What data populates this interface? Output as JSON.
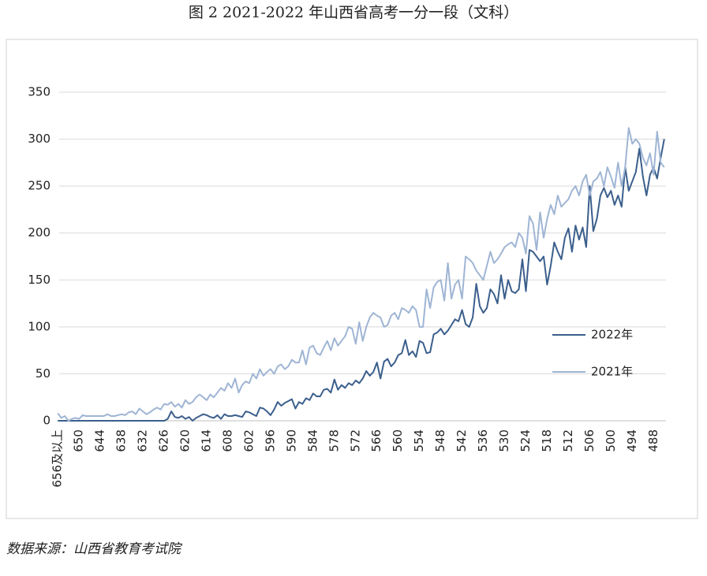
{
  "chart_data": {
    "type": "line",
    "title": "图 2 2021-2022 年山西省高考一分一段（文科）",
    "source": "数据来源：山西省教育考试院",
    "categories": [
      "656及以上",
      null,
      null,
      null,
      null,
      null,
      "650",
      null,
      null,
      null,
      null,
      null,
      "644",
      null,
      null,
      null,
      null,
      null,
      "638",
      null,
      null,
      null,
      null,
      null,
      "632",
      null,
      null,
      null,
      null,
      null,
      "626",
      null,
      null,
      null,
      null,
      null,
      "620",
      null,
      null,
      null,
      null,
      null,
      "614",
      null,
      null,
      null,
      null,
      null,
      "608",
      null,
      null,
      null,
      null,
      null,
      "602",
      null,
      null,
      null,
      null,
      null,
      "596",
      null,
      null,
      null,
      null,
      null,
      "590",
      null,
      null,
      null,
      null,
      null,
      "584",
      null,
      null,
      null,
      null,
      null,
      "578",
      null,
      null,
      null,
      null,
      null,
      "572",
      null,
      null,
      null,
      null,
      null,
      "566",
      null,
      null,
      null,
      null,
      null,
      "560",
      null,
      null,
      null,
      null,
      null,
      "554",
      null,
      null,
      null,
      null,
      null,
      "548",
      null,
      null,
      null,
      null,
      null,
      "542",
      null,
      null,
      null,
      null,
      null,
      "536",
      null,
      null,
      null,
      null,
      null,
      "530",
      null,
      null,
      null,
      null,
      null,
      "524",
      null,
      null,
      null,
      null,
      null,
      "518",
      null,
      null,
      null,
      null,
      null,
      "512",
      null,
      null,
      null,
      null,
      null,
      "506",
      null,
      null,
      null,
      null,
      null,
      "500",
      null,
      null,
      null,
      null,
      null,
      "494",
      null,
      null,
      null,
      null,
      null,
      "488",
      null,
      null,
      null
    ],
    "series": [
      {
        "name": "2022年",
        "color": "#3b5f8c",
        "values": [
          0,
          0,
          0,
          0,
          0,
          0,
          0,
          0,
          0,
          0,
          0,
          0,
          0,
          0,
          0,
          0,
          0,
          0,
          0,
          0,
          0,
          0,
          0,
          0,
          0,
          0,
          0,
          0,
          0,
          0,
          0,
          2,
          10,
          4,
          3,
          5,
          2,
          4,
          0,
          3,
          5,
          7,
          6,
          4,
          3,
          6,
          2,
          7,
          5,
          5,
          6,
          5,
          4,
          10,
          9,
          7,
          5,
          14,
          13,
          10,
          6,
          12,
          20,
          16,
          19,
          21,
          23,
          13,
          20,
          18,
          24,
          22,
          29,
          26,
          26,
          33,
          34,
          30,
          44,
          33,
          38,
          35,
          40,
          38,
          43,
          40,
          45,
          53,
          48,
          52,
          62,
          45,
          63,
          66,
          58,
          62,
          70,
          72,
          86,
          70,
          74,
          68,
          85,
          83,
          72,
          73,
          92,
          94,
          98,
          92,
          96,
          102,
          108,
          106,
          118,
          103,
          100,
          110,
          146,
          122,
          115,
          120,
          140,
          135,
          125,
          155,
          130,
          150,
          138,
          136,
          140,
          172,
          138,
          182,
          180,
          175,
          170,
          175,
          145,
          165,
          190,
          180,
          172,
          195,
          205,
          180,
          208,
          193,
          206,
          185,
          250,
          202,
          215,
          240,
          248,
          238,
          245,
          230,
          240,
          228,
          270,
          245,
          255,
          265,
          290,
          260,
          240,
          262,
          270,
          258,
          280,
          300
        ]
      },
      {
        "name": "2021年",
        "color": "#9fb5d4",
        "values": [
          8,
          3,
          5,
          0,
          2,
          3,
          2,
          6,
          5,
          5,
          5,
          5,
          5,
          5,
          7,
          5,
          5,
          6,
          7,
          6,
          9,
          10,
          7,
          13,
          10,
          7,
          9,
          12,
          14,
          12,
          18,
          17,
          20,
          15,
          18,
          14,
          22,
          18,
          20,
          25,
          28,
          25,
          22,
          28,
          25,
          30,
          35,
          32,
          40,
          35,
          45,
          30,
          38,
          42,
          40,
          50,
          45,
          55,
          48,
          52,
          55,
          50,
          58,
          60,
          55,
          58,
          65,
          62,
          62,
          75,
          60,
          78,
          80,
          72,
          70,
          78,
          85,
          75,
          88,
          80,
          85,
          90,
          100,
          98,
          82,
          105,
          85,
          100,
          110,
          115,
          112,
          110,
          100,
          102,
          112,
          115,
          108,
          120,
          118,
          115,
          122,
          118,
          100,
          100,
          140,
          120,
          142,
          148,
          150,
          128,
          168,
          130,
          145,
          150,
          130,
          175,
          172,
          168,
          160,
          155,
          150,
          165,
          180,
          168,
          172,
          178,
          185,
          188,
          190,
          185,
          200,
          195,
          178,
          218,
          210,
          182,
          222,
          195,
          215,
          230,
          220,
          240,
          228,
          232,
          236,
          245,
          250,
          240,
          255,
          262,
          240,
          255,
          258,
          265,
          250,
          270,
          260,
          248,
          275,
          250,
          270,
          312,
          295,
          300,
          295,
          280,
          272,
          285,
          262,
          308,
          275,
          270
        ]
      }
    ],
    "ylim": [
      0,
      350
    ],
    "yticks": [
      0,
      50,
      100,
      150,
      200,
      250,
      300,
      350
    ],
    "grid": true,
    "legend": "right"
  }
}
